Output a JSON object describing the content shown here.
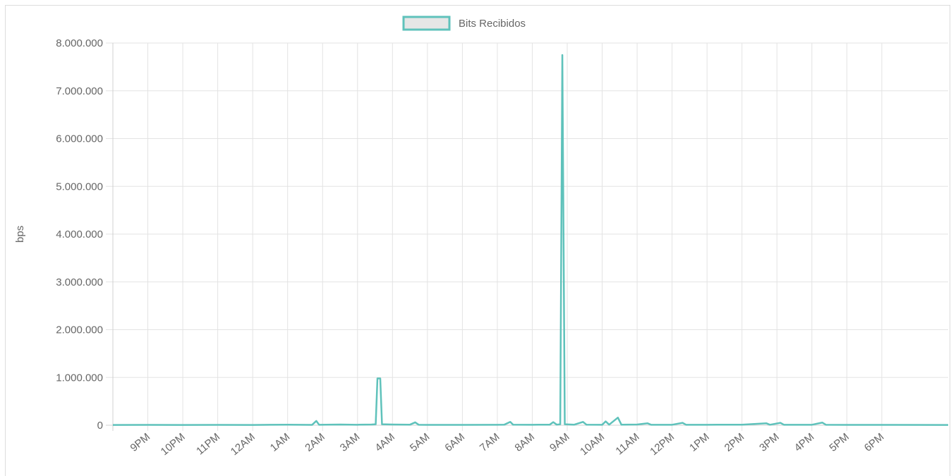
{
  "chart_data": {
    "type": "line",
    "legend": {
      "label": "Bits Recibidos",
      "position": "top-center",
      "box_fill": "#e6e6e6",
      "box_stroke": "#5fc2bb"
    },
    "ylabel": "bps",
    "xlabel": "",
    "ylim": [
      0,
      8000000
    ],
    "y_ticks": [
      "0",
      "1.000.000",
      "2.000.000",
      "3.000.000",
      "4.000.000",
      "5.000.000",
      "6.000.000",
      "7.000.000",
      "8.000.000"
    ],
    "x_range_hours": [
      20,
      43.9
    ],
    "x_ticks": [
      {
        "label": "9PM",
        "hour": 21
      },
      {
        "label": "10PM",
        "hour": 22
      },
      {
        "label": "11PM",
        "hour": 23
      },
      {
        "label": "12AM",
        "hour": 24
      },
      {
        "label": "1AM",
        "hour": 25
      },
      {
        "label": "2AM",
        "hour": 26
      },
      {
        "label": "3AM",
        "hour": 27
      },
      {
        "label": "4AM",
        "hour": 28
      },
      {
        "label": "5AM",
        "hour": 29
      },
      {
        "label": "6AM",
        "hour": 30
      },
      {
        "label": "7AM",
        "hour": 31
      },
      {
        "label": "8AM",
        "hour": 32
      },
      {
        "label": "9AM",
        "hour": 33
      },
      {
        "label": "10AM",
        "hour": 34
      },
      {
        "label": "11AM",
        "hour": 35
      },
      {
        "label": "12PM",
        "hour": 36
      },
      {
        "label": "1PM",
        "hour": 37
      },
      {
        "label": "2PM",
        "hour": 38
      },
      {
        "label": "3PM",
        "hour": 39
      },
      {
        "label": "4PM",
        "hour": 40
      },
      {
        "label": "5PM",
        "hour": 41
      },
      {
        "label": "6PM",
        "hour": 42
      }
    ],
    "grid": true,
    "series": [
      {
        "name": "Bits Recibidos",
        "color": "#5fc2bb",
        "points": [
          [
            20.0,
            5000
          ],
          [
            21.0,
            8000
          ],
          [
            22.0,
            6000
          ],
          [
            23.0,
            7000
          ],
          [
            24.0,
            6000
          ],
          [
            25.0,
            12000
          ],
          [
            25.7,
            8000
          ],
          [
            25.82,
            90000
          ],
          [
            25.9,
            10000
          ],
          [
            26.5,
            15000
          ],
          [
            27.0,
            10000
          ],
          [
            27.4,
            15000
          ],
          [
            27.52,
            20000
          ],
          [
            27.57,
            980000
          ],
          [
            27.65,
            980000
          ],
          [
            27.7,
            20000
          ],
          [
            28.0,
            15000
          ],
          [
            28.5,
            12000
          ],
          [
            28.65,
            60000
          ],
          [
            28.75,
            10000
          ],
          [
            29.0,
            8000
          ],
          [
            30.0,
            8000
          ],
          [
            31.0,
            10000
          ],
          [
            31.2,
            12000
          ],
          [
            31.37,
            70000
          ],
          [
            31.45,
            12000
          ],
          [
            32.0,
            10000
          ],
          [
            32.5,
            12000
          ],
          [
            32.6,
            65000
          ],
          [
            32.7,
            12000
          ],
          [
            32.8,
            20000
          ],
          [
            32.86,
            7750000
          ],
          [
            32.93,
            20000
          ],
          [
            33.2,
            12000
          ],
          [
            33.45,
            70000
          ],
          [
            33.55,
            12000
          ],
          [
            34.0,
            10000
          ],
          [
            34.1,
            80000
          ],
          [
            34.2,
            12000
          ],
          [
            34.45,
            160000
          ],
          [
            34.55,
            12000
          ],
          [
            35.0,
            15000
          ],
          [
            35.3,
            40000
          ],
          [
            35.4,
            10000
          ],
          [
            36.0,
            10000
          ],
          [
            36.3,
            50000
          ],
          [
            36.4,
            10000
          ],
          [
            37.0,
            10000
          ],
          [
            38.0,
            12000
          ],
          [
            38.7,
            40000
          ],
          [
            38.8,
            10000
          ],
          [
            39.1,
            50000
          ],
          [
            39.2,
            10000
          ],
          [
            40.0,
            10000
          ],
          [
            40.3,
            55000
          ],
          [
            40.4,
            10000
          ],
          [
            41.0,
            8000
          ],
          [
            43.9,
            5000
          ]
        ]
      }
    ]
  }
}
